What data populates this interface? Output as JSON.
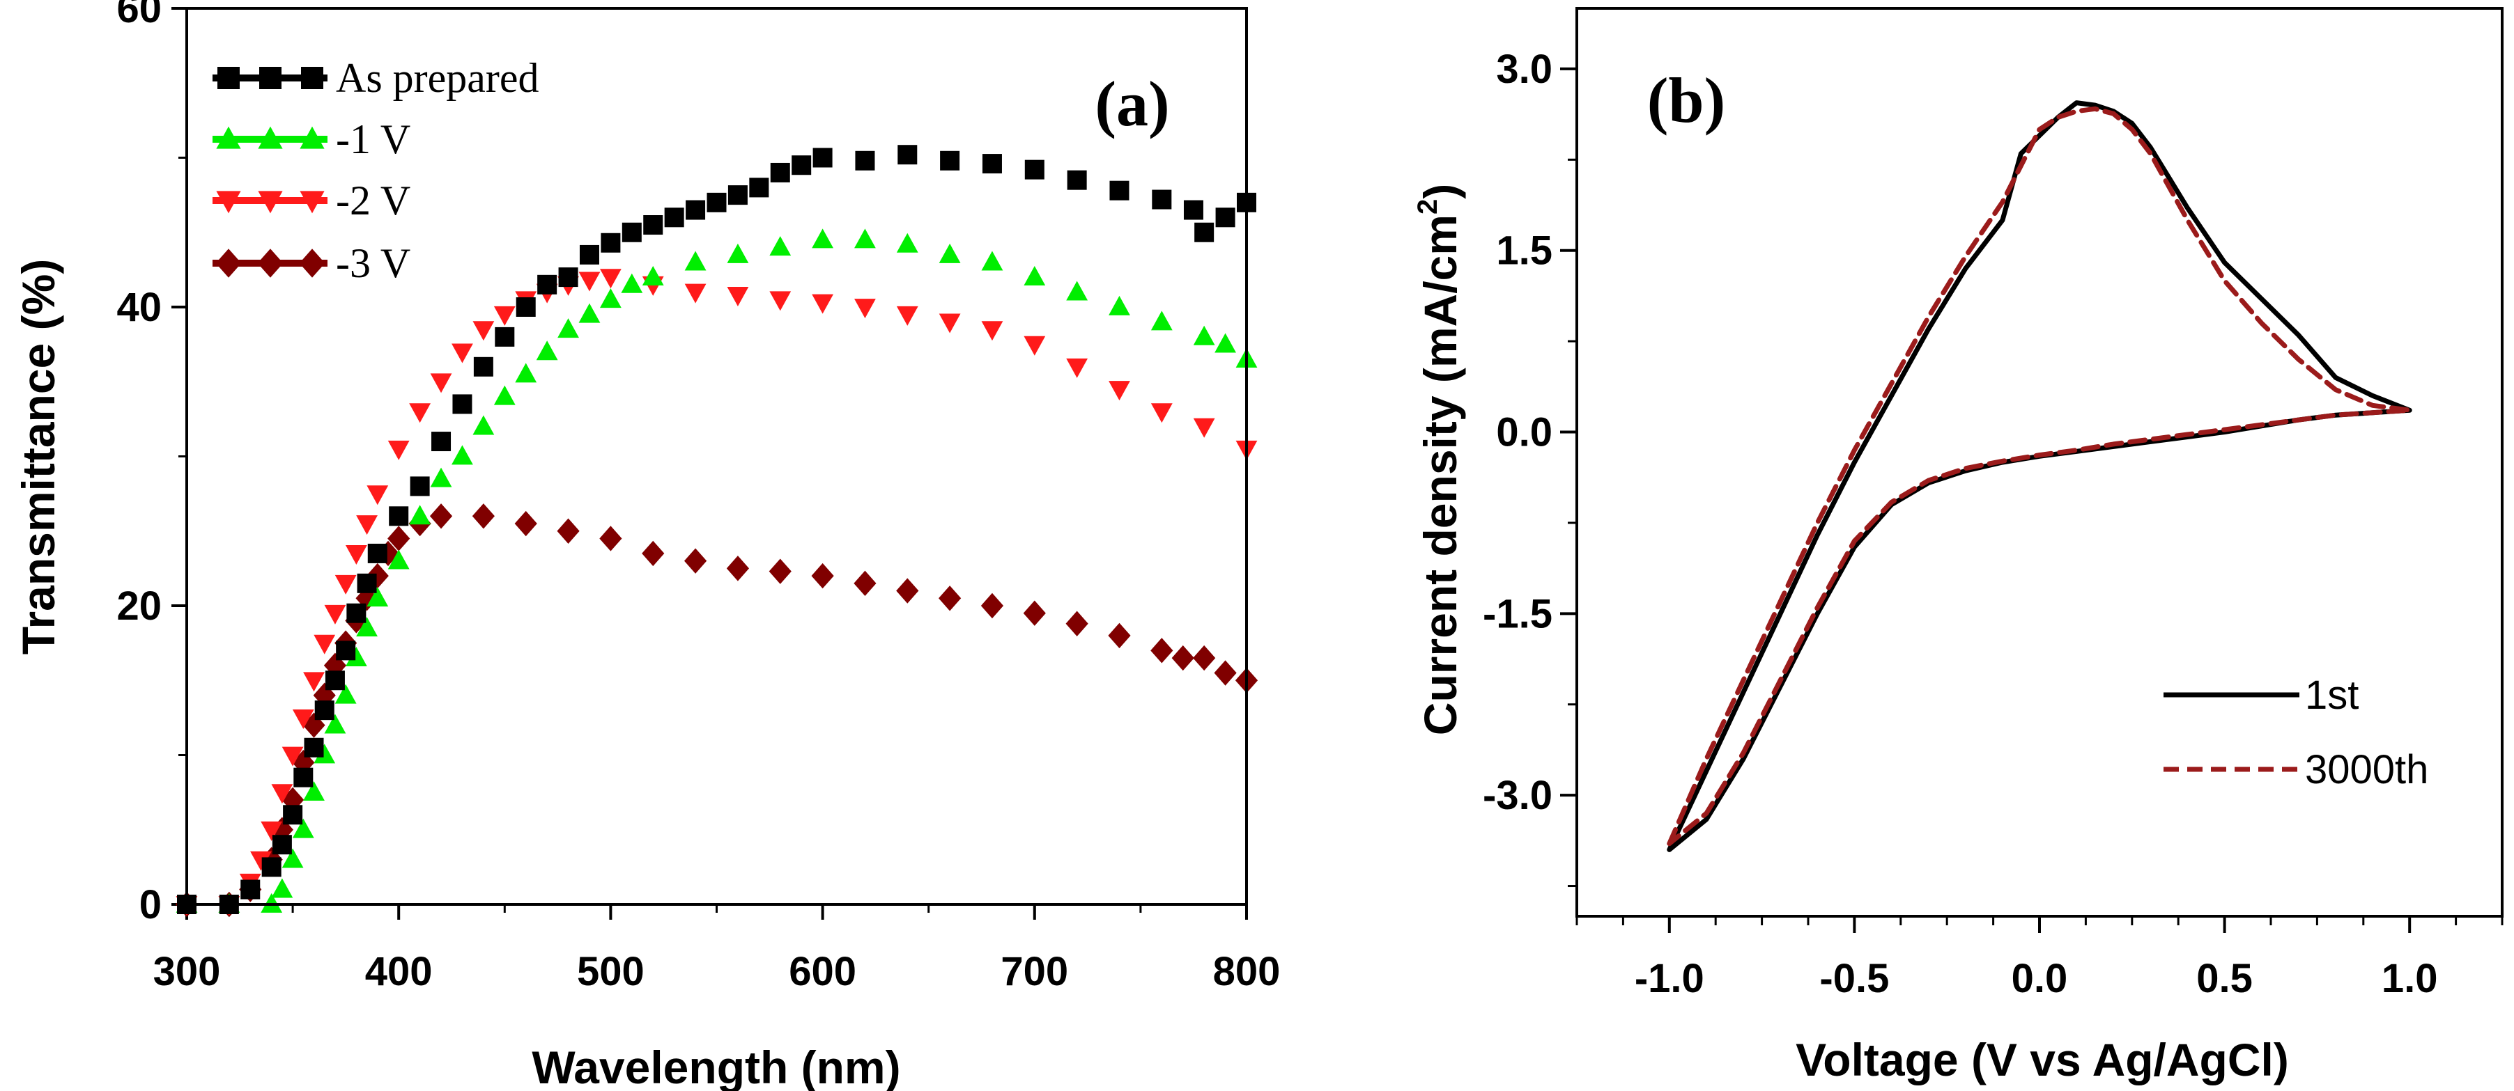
{
  "chart_data": [
    {
      "type": "scatter",
      "panel_label": "(a)",
      "xlabel": "Wavelength (nm)",
      "ylabel": "Transmittance (%)",
      "xlim": [
        300,
        800
      ],
      "ylim": [
        0,
        60
      ],
      "x_ticks": [
        300,
        400,
        500,
        600,
        700,
        800
      ],
      "y_ticks": [
        0,
        20,
        40,
        60
      ],
      "legend_position": "top-left",
      "series": [
        {
          "name": "As prepared",
          "color": "#000000",
          "marker": "square",
          "points": [
            [
              300,
              0
            ],
            [
              320,
              0
            ],
            [
              330,
              1
            ],
            [
              340,
              2.5
            ],
            [
              345,
              4
            ],
            [
              350,
              6
            ],
            [
              355,
              8.5
            ],
            [
              360,
              10.5
            ],
            [
              365,
              13
            ],
            [
              370,
              15
            ],
            [
              375,
              17
            ],
            [
              380,
              19.5
            ],
            [
              385,
              21.5
            ],
            [
              390,
              23.5
            ],
            [
              400,
              26
            ],
            [
              410,
              28
            ],
            [
              420,
              31
            ],
            [
              430,
              33.5
            ],
            [
              440,
              36
            ],
            [
              450,
              38
            ],
            [
              460,
              40
            ],
            [
              470,
              41.5
            ],
            [
              480,
              42
            ],
            [
              490,
              43.5
            ],
            [
              500,
              44.3
            ],
            [
              510,
              45
            ],
            [
              520,
              45.5
            ],
            [
              530,
              46
            ],
            [
              540,
              46.5
            ],
            [
              550,
              47
            ],
            [
              560,
              47.5
            ],
            [
              570,
              48
            ],
            [
              580,
              49
            ],
            [
              590,
              49.5
            ],
            [
              600,
              50
            ],
            [
              620,
              49.8
            ],
            [
              640,
              50.2
            ],
            [
              660,
              49.8
            ],
            [
              680,
              49.6
            ],
            [
              700,
              49.2
            ],
            [
              720,
              48.5
            ],
            [
              740,
              47.8
            ],
            [
              760,
              47.2
            ],
            [
              775,
              46.5
            ],
            [
              780,
              45
            ],
            [
              790,
              46
            ],
            [
              800,
              47
            ]
          ]
        },
        {
          "name": "-1 V",
          "color": "#00ee00",
          "marker": "triangle-up",
          "points": [
            [
              300,
              0
            ],
            [
              320,
              0
            ],
            [
              340,
              0
            ],
            [
              345,
              1
            ],
            [
              350,
              3
            ],
            [
              355,
              5
            ],
            [
              360,
              7.5
            ],
            [
              365,
              10
            ],
            [
              370,
              12
            ],
            [
              375,
              14
            ],
            [
              380,
              16.5
            ],
            [
              385,
              18.5
            ],
            [
              390,
              20.5
            ],
            [
              400,
              23
            ],
            [
              410,
              26
            ],
            [
              420,
              28.5
            ],
            [
              430,
              30
            ],
            [
              440,
              32
            ],
            [
              450,
              34
            ],
            [
              460,
              35.5
            ],
            [
              470,
              37
            ],
            [
              480,
              38.5
            ],
            [
              490,
              39.5
            ],
            [
              500,
              40.5
            ],
            [
              510,
              41.5
            ],
            [
              520,
              42
            ],
            [
              540,
              43
            ],
            [
              560,
              43.5
            ],
            [
              580,
              44
            ],
            [
              600,
              44.5
            ],
            [
              620,
              44.5
            ],
            [
              640,
              44.2
            ],
            [
              660,
              43.5
            ],
            [
              680,
              43
            ],
            [
              700,
              42
            ],
            [
              720,
              41
            ],
            [
              740,
              40
            ],
            [
              760,
              39
            ],
            [
              780,
              38
            ],
            [
              790,
              37.5
            ],
            [
              800,
              36.5
            ]
          ]
        },
        {
          "name": "-2 V",
          "color": "#ff1a1a",
          "marker": "triangle-down",
          "points": [
            [
              300,
              0
            ],
            [
              320,
              0
            ],
            [
              330,
              1.5
            ],
            [
              335,
              3
            ],
            [
              340,
              5
            ],
            [
              345,
              7.5
            ],
            [
              350,
              10
            ],
            [
              355,
              12.5
            ],
            [
              360,
              15
            ],
            [
              365,
              17.5
            ],
            [
              370,
              19.5
            ],
            [
              375,
              21.5
            ],
            [
              380,
              23.5
            ],
            [
              385,
              25.5
            ],
            [
              390,
              27.5
            ],
            [
              400,
              30.5
            ],
            [
              410,
              33
            ],
            [
              420,
              35
            ],
            [
              430,
              37
            ],
            [
              440,
              38.5
            ],
            [
              450,
              39.5
            ],
            [
              460,
              40.5
            ],
            [
              470,
              41
            ],
            [
              480,
              41.5
            ],
            [
              490,
              41.8
            ],
            [
              500,
              42
            ],
            [
              520,
              41.5
            ],
            [
              540,
              41
            ],
            [
              560,
              40.8
            ],
            [
              580,
              40.5
            ],
            [
              600,
              40.3
            ],
            [
              620,
              40
            ],
            [
              640,
              39.5
            ],
            [
              660,
              39
            ],
            [
              680,
              38.5
            ],
            [
              700,
              37.5
            ],
            [
              720,
              36
            ],
            [
              740,
              34.5
            ],
            [
              760,
              33
            ],
            [
              780,
              32
            ],
            [
              800,
              30.5
            ]
          ]
        },
        {
          "name": "-3 V",
          "color": "#800000",
          "marker": "diamond",
          "points": [
            [
              300,
              0
            ],
            [
              320,
              0
            ],
            [
              330,
              1
            ],
            [
              340,
              3
            ],
            [
              345,
              5
            ],
            [
              350,
              7
            ],
            [
              355,
              9.5
            ],
            [
              360,
              12
            ],
            [
              365,
              14
            ],
            [
              370,
              16
            ],
            [
              375,
              17.5
            ],
            [
              380,
              19
            ],
            [
              385,
              20.5
            ],
            [
              390,
              22
            ],
            [
              395,
              23.5
            ],
            [
              400,
              24.5
            ],
            [
              410,
              25.5
            ],
            [
              420,
              26
            ],
            [
              440,
              26
            ],
            [
              460,
              25.5
            ],
            [
              480,
              25
            ],
            [
              500,
              24.5
            ],
            [
              520,
              23.5
            ],
            [
              540,
              23
            ],
            [
              560,
              22.5
            ],
            [
              580,
              22.3
            ],
            [
              600,
              22
            ],
            [
              620,
              21.5
            ],
            [
              640,
              21
            ],
            [
              660,
              20.5
            ],
            [
              680,
              20
            ],
            [
              700,
              19.5
            ],
            [
              720,
              18.8
            ],
            [
              740,
              18
            ],
            [
              760,
              17
            ],
            [
              770,
              16.5
            ],
            [
              780,
              16.5
            ],
            [
              790,
              15.5
            ],
            [
              800,
              15
            ]
          ]
        }
      ]
    },
    {
      "type": "line",
      "panel_label": "(b)",
      "xlabel": "Voltage (V vs Ag/AgCl)",
      "ylabel_main": "Current density (mA/cm",
      "ylabel_sup": "2",
      "ylabel_end": ")",
      "xlim": [
        -1.25,
        1.25
      ],
      "ylim": [
        -4,
        3.5
      ],
      "x_ticks": [
        "-1.0",
        "-0.5",
        "0.0",
        "0.5",
        "1.0"
      ],
      "y_ticks": [
        "3.0",
        "1.5",
        "0.0",
        "-1.5",
        "-3.0"
      ],
      "legend_position": "bottom-right",
      "series": [
        {
          "name": "1st",
          "color": "#000000",
          "dash": "solid",
          "x": [
            -1.0,
            -0.9,
            -0.8,
            -0.7,
            -0.6,
            -0.5,
            -0.4,
            -0.3,
            -0.2,
            -0.1,
            -0.05,
            0.0,
            0.05,
            0.1,
            0.15,
            0.2,
            0.25,
            0.3,
            0.4,
            0.5,
            0.6,
            0.7,
            0.8,
            0.9,
            1.0,
            0.9,
            0.8,
            0.7,
            0.6,
            0.5,
            0.4,
            0.3,
            0.2,
            0.1,
            0.0,
            -0.1,
            -0.2,
            -0.3,
            -0.4,
            -0.5,
            -0.6,
            -0.7,
            -0.8,
            -0.9,
            -1.0
          ],
          "y": [
            -3.45,
            -2.8,
            -2.15,
            -1.5,
            -0.85,
            -0.25,
            0.3,
            0.85,
            1.35,
            1.75,
            2.3,
            2.45,
            2.6,
            2.72,
            2.7,
            2.65,
            2.55,
            2.35,
            1.85,
            1.4,
            1.1,
            0.8,
            0.45,
            0.3,
            0.18,
            0.16,
            0.14,
            0.1,
            0.05,
            0.0,
            -0.04,
            -0.08,
            -0.12,
            -0.16,
            -0.2,
            -0.25,
            -0.32,
            -0.42,
            -0.6,
            -0.95,
            -1.5,
            -2.1,
            -2.7,
            -3.2,
            -3.45
          ]
        },
        {
          "name": "3000th",
          "color": "#9b1b1b",
          "dash": "dashed",
          "x": [
            -1.0,
            -0.9,
            -0.8,
            -0.7,
            -0.6,
            -0.5,
            -0.4,
            -0.3,
            -0.2,
            -0.1,
            -0.05,
            0.0,
            0.05,
            0.1,
            0.15,
            0.2,
            0.25,
            0.3,
            0.4,
            0.5,
            0.6,
            0.7,
            0.8,
            0.9,
            1.0,
            0.9,
            0.8,
            0.7,
            0.6,
            0.5,
            0.4,
            0.3,
            0.2,
            0.1,
            0.0,
            -0.1,
            -0.2,
            -0.3,
            -0.4,
            -0.5,
            -0.6,
            -0.7,
            -0.8,
            -0.9,
            -1.0
          ],
          "y": [
            -3.4,
            -2.7,
            -2.05,
            -1.4,
            -0.75,
            -0.15,
            0.4,
            0.95,
            1.45,
            1.9,
            2.2,
            2.5,
            2.6,
            2.65,
            2.67,
            2.63,
            2.5,
            2.3,
            1.75,
            1.25,
            0.9,
            0.6,
            0.35,
            0.22,
            0.18,
            0.16,
            0.14,
            0.1,
            0.06,
            0.02,
            -0.02,
            -0.06,
            -0.1,
            -0.15,
            -0.19,
            -0.24,
            -0.3,
            -0.4,
            -0.58,
            -0.9,
            -1.45,
            -2.05,
            -2.65,
            -3.15,
            -3.4
          ]
        }
      ]
    }
  ]
}
